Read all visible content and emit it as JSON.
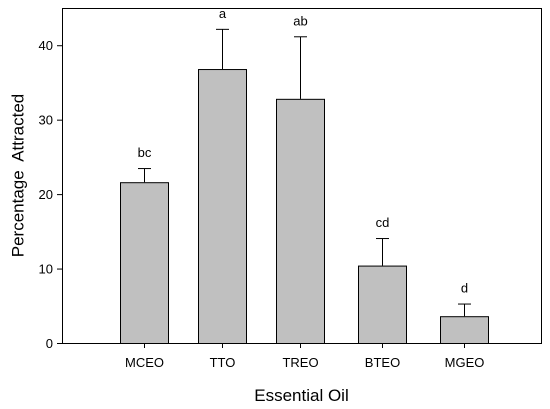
{
  "chart_data": {
    "type": "bar",
    "title": "",
    "xlabel": "Essential Oil",
    "ylabel": "Percentage  Attracted",
    "categories": [
      "MCEO",
      "TTO",
      "TREO",
      "BTEO",
      "MGEO"
    ],
    "values": [
      21.6,
      36.8,
      32.8,
      10.4,
      3.6
    ],
    "error_plus": [
      1.9,
      5.4,
      8.4,
      3.7,
      1.7
    ],
    "letters": [
      "bc",
      "a",
      "ab",
      "cd",
      "d"
    ],
    "ylim": [
      0,
      45
    ],
    "yticks": [
      0,
      10,
      20,
      30,
      40
    ],
    "grid": false,
    "legend": "none",
    "bar_color": "#c0c0c0",
    "edge_color": "#000000"
  }
}
